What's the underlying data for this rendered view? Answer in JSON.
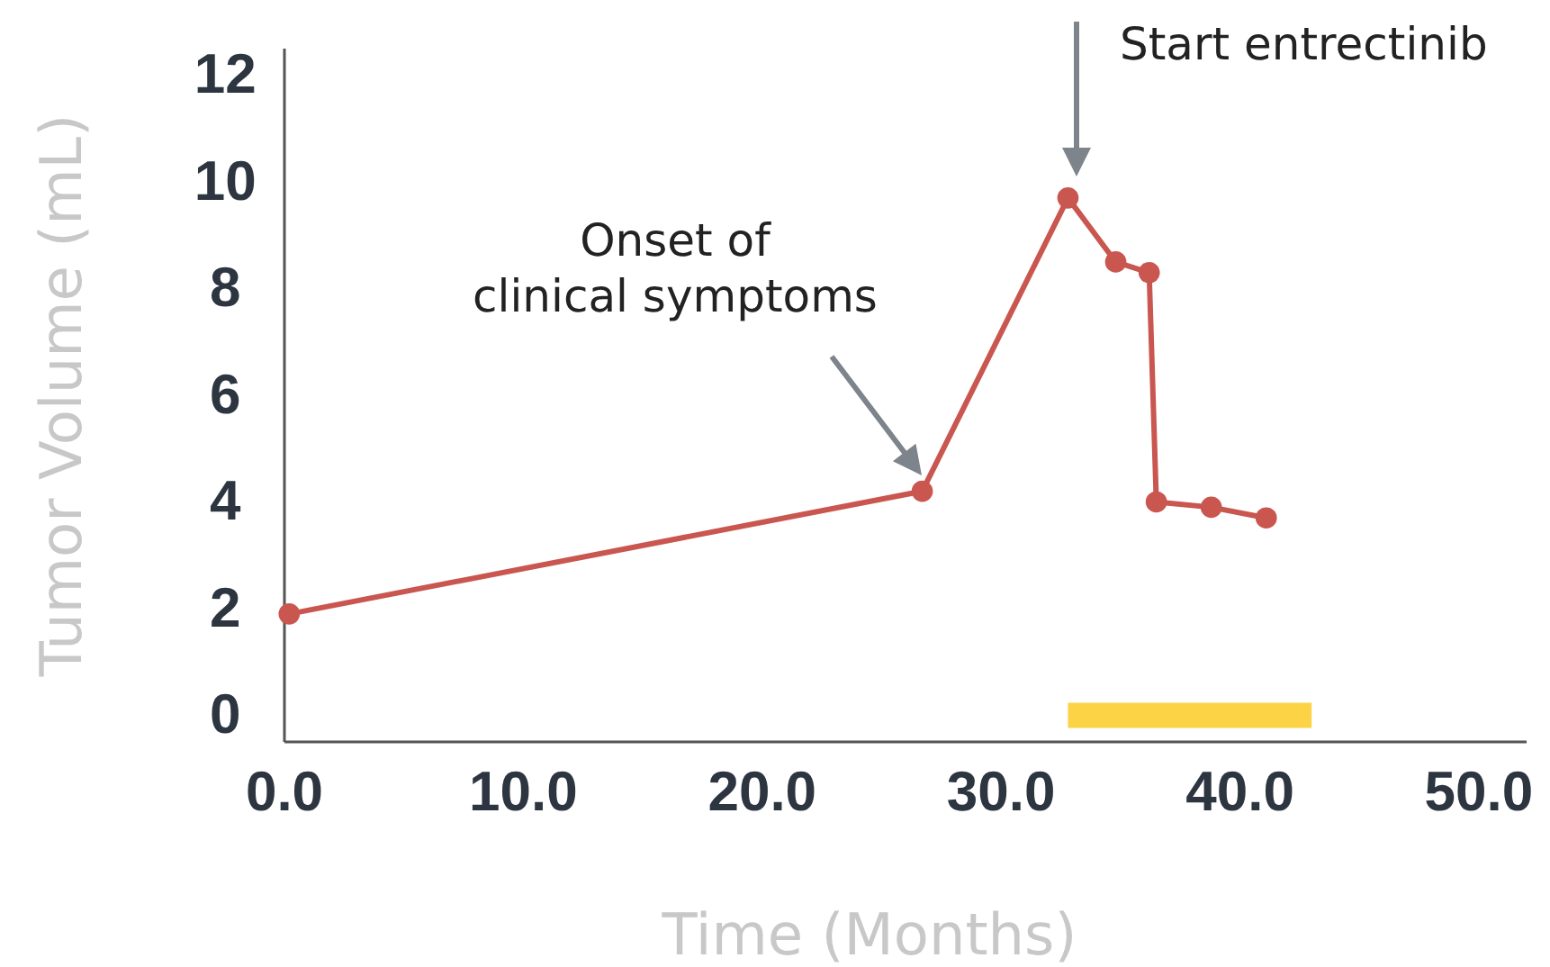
{
  "chart_data": {
    "type": "line",
    "xlabel": "Time (Months)",
    "ylabel": "Tumor Volume (mL)",
    "x": [
      0.2,
      26.7,
      32.8,
      34.8,
      36.2,
      36.5,
      38.8,
      41.1
    ],
    "series": [
      {
        "color": "#c9564f",
        "values": [
          1.9,
          4.2,
          9.7,
          8.5,
          8.3,
          4.0,
          3.9,
          3.7
        ]
      },
      {
        "color": "#fdd346",
        "x": [
          32.8,
          43.0
        ],
        "values": [
          0,
          0
        ],
        "marker": "none"
      }
    ],
    "xlim": [
      0,
      52
    ],
    "xticks": [
      {
        "value": 0,
        "label": "0.0"
      },
      {
        "value": 10,
        "label": "10.0"
      },
      {
        "value": 20,
        "label": "20.0"
      },
      {
        "value": 30,
        "label": "30.0"
      },
      {
        "value": 40,
        "label": "40.0"
      },
      {
        "value": 50,
        "label": "50.0"
      }
    ],
    "ylim": [
      -0.5,
      12.5
    ],
    "yticks": [
      0,
      2,
      4,
      6,
      8,
      10,
      12
    ],
    "marker": "circle",
    "grid": false,
    "annotations": [
      "Start entrectinib",
      "Onset of\nclinical symptoms"
    ]
  }
}
